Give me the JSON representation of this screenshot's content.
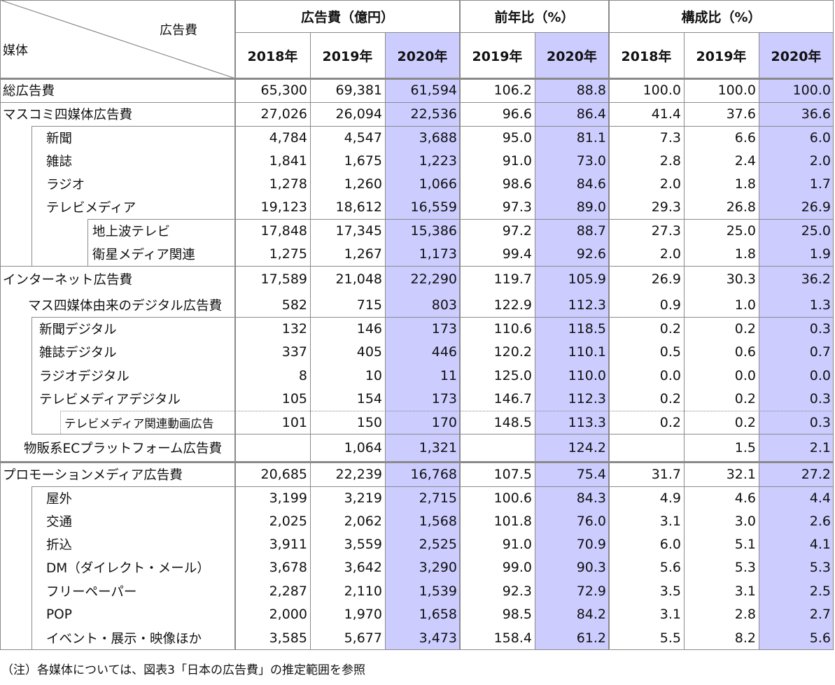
{
  "header": {
    "corner_top": "広告費",
    "corner_bottom": "媒体",
    "groups": [
      "広告費（億円）",
      "前年比（%）",
      "構成比（%）"
    ],
    "years": [
      "2018年",
      "2019年",
      "2020年",
      "2019年",
      "2020年",
      "2018年",
      "2019年",
      "2020年"
    ]
  },
  "highlight_color": "#ccccff",
  "rows": [
    {
      "label": "総広告費",
      "values": [
        "65,300",
        "69,381",
        "61,594",
        "106.2",
        "88.8",
        "100.0",
        "100.0",
        "100.0"
      ]
    },
    {
      "label": "マスコミ四媒体広告費",
      "values": [
        "27,026",
        "26,094",
        "22,536",
        "96.6",
        "86.4",
        "41.4",
        "37.6",
        "36.6"
      ]
    },
    {
      "label": "新聞",
      "values": [
        "4,784",
        "4,547",
        "3,688",
        "95.0",
        "81.1",
        "7.3",
        "6.6",
        "6.0"
      ]
    },
    {
      "label": "雑誌",
      "values": [
        "1,841",
        "1,675",
        "1,223",
        "91.0",
        "73.0",
        "2.8",
        "2.4",
        "2.0"
      ]
    },
    {
      "label": "ラジオ",
      "values": [
        "1,278",
        "1,260",
        "1,066",
        "98.6",
        "84.6",
        "2.0",
        "1.8",
        "1.7"
      ]
    },
    {
      "label": "テレビメディア",
      "values": [
        "19,123",
        "18,612",
        "16,559",
        "97.3",
        "89.0",
        "29.3",
        "26.8",
        "26.9"
      ]
    },
    {
      "label": "地上波テレビ",
      "values": [
        "17,848",
        "17,345",
        "15,386",
        "97.2",
        "88.7",
        "27.3",
        "25.0",
        "25.0"
      ]
    },
    {
      "label": "衛星メディア関連",
      "values": [
        "1,275",
        "1,267",
        "1,173",
        "99.4",
        "92.6",
        "2.0",
        "1.8",
        "1.9"
      ]
    },
    {
      "label": "インターネット広告費",
      "values": [
        "17,589",
        "21,048",
        "22,290",
        "119.7",
        "105.9",
        "26.9",
        "30.3",
        "36.2"
      ]
    },
    {
      "label": "マス四媒体由来のデジタル広告費",
      "values": [
        "582",
        "715",
        "803",
        "122.9",
        "112.3",
        "0.9",
        "1.0",
        "1.3"
      ]
    },
    {
      "label": "新聞デジタル",
      "values": [
        "132",
        "146",
        "173",
        "110.6",
        "118.5",
        "0.2",
        "0.2",
        "0.3"
      ]
    },
    {
      "label": "雑誌デジタル",
      "values": [
        "337",
        "405",
        "446",
        "120.2",
        "110.1",
        "0.5",
        "0.6",
        "0.7"
      ]
    },
    {
      "label": "ラジオデジタル",
      "values": [
        "8",
        "10",
        "11",
        "125.0",
        "110.0",
        "0.0",
        "0.0",
        "0.0"
      ]
    },
    {
      "label": "テレビメディアデジタル",
      "values": [
        "105",
        "154",
        "173",
        "146.7",
        "112.3",
        "0.2",
        "0.2",
        "0.3"
      ]
    },
    {
      "label": "テレビメディア関連動画広告",
      "values": [
        "101",
        "150",
        "170",
        "148.5",
        "113.3",
        "0.2",
        "0.2",
        "0.3"
      ]
    },
    {
      "label": "物販系ECプラットフォーム広告費",
      "values": [
        "",
        "1,064",
        "1,321",
        "",
        "124.2",
        "",
        "1.5",
        "2.1"
      ]
    },
    {
      "label": "プロモーションメディア広告費",
      "values": [
        "20,685",
        "22,239",
        "16,768",
        "107.5",
        "75.4",
        "31.7",
        "32.1",
        "27.2"
      ]
    },
    {
      "label": "屋外",
      "values": [
        "3,199",
        "3,219",
        "2,715",
        "100.6",
        "84.3",
        "4.9",
        "4.6",
        "4.4"
      ]
    },
    {
      "label": "交通",
      "values": [
        "2,025",
        "2,062",
        "1,568",
        "101.8",
        "76.0",
        "3.1",
        "3.0",
        "2.6"
      ]
    },
    {
      "label": "折込",
      "values": [
        "3,911",
        "3,559",
        "2,525",
        "91.0",
        "70.9",
        "6.0",
        "5.1",
        "4.1"
      ]
    },
    {
      "label": "DM（ダイレクト・メール）",
      "values": [
        "3,678",
        "3,642",
        "3,290",
        "99.0",
        "90.3",
        "5.6",
        "5.3",
        "5.3"
      ]
    },
    {
      "label": "フリーペーパー",
      "values": [
        "2,287",
        "2,110",
        "1,539",
        "92.3",
        "72.9",
        "3.5",
        "3.1",
        "2.5"
      ]
    },
    {
      "label": "POP",
      "values": [
        "2,000",
        "1,970",
        "1,658",
        "98.5",
        "84.2",
        "3.1",
        "2.8",
        "2.7"
      ]
    },
    {
      "label": "イベント・展示・映像ほか",
      "values": [
        "3,585",
        "5,677",
        "3,473",
        "158.4",
        "61.2",
        "5.5",
        "8.2",
        "5.6"
      ]
    }
  ],
  "footnote": "（注）各媒体については、図表3「日本の広告費」の推定範囲を参照"
}
